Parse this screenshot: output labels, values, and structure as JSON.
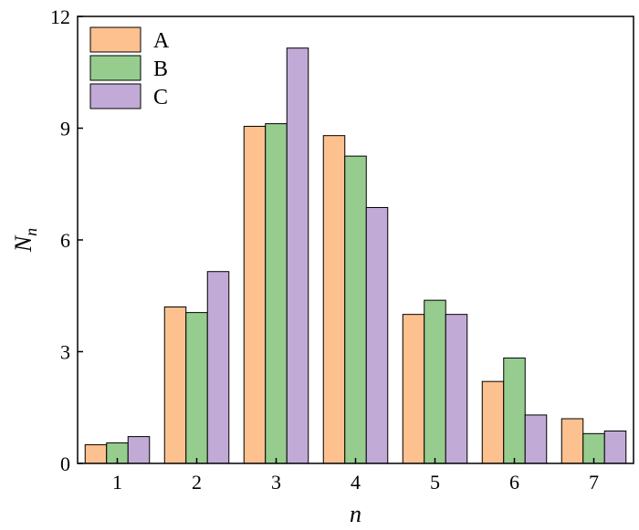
{
  "chart_data": {
    "type": "bar",
    "categories": [
      "1",
      "2",
      "3",
      "4",
      "5",
      "6",
      "7"
    ],
    "series": [
      {
        "name": "A",
        "color": "#FDC08F",
        "values": [
          0.5,
          4.2,
          9.05,
          8.8,
          4.0,
          2.2,
          1.2
        ]
      },
      {
        "name": "B",
        "color": "#96CD8F",
        "values": [
          0.55,
          4.05,
          9.12,
          8.25,
          4.38,
          2.83,
          0.8
        ]
      },
      {
        "name": "C",
        "color": "#C2AAD6",
        "values": [
          0.72,
          5.15,
          11.15,
          6.87,
          4.0,
          1.3,
          0.87
        ]
      }
    ],
    "ylim": [
      0,
      12
    ],
    "yticks": [
      "0",
      "3",
      "6",
      "9",
      "12"
    ],
    "xlabel": "n",
    "ylabel_main": "N",
    "ylabel_sub": "n",
    "legend_position": "top-left",
    "grid": false
  }
}
